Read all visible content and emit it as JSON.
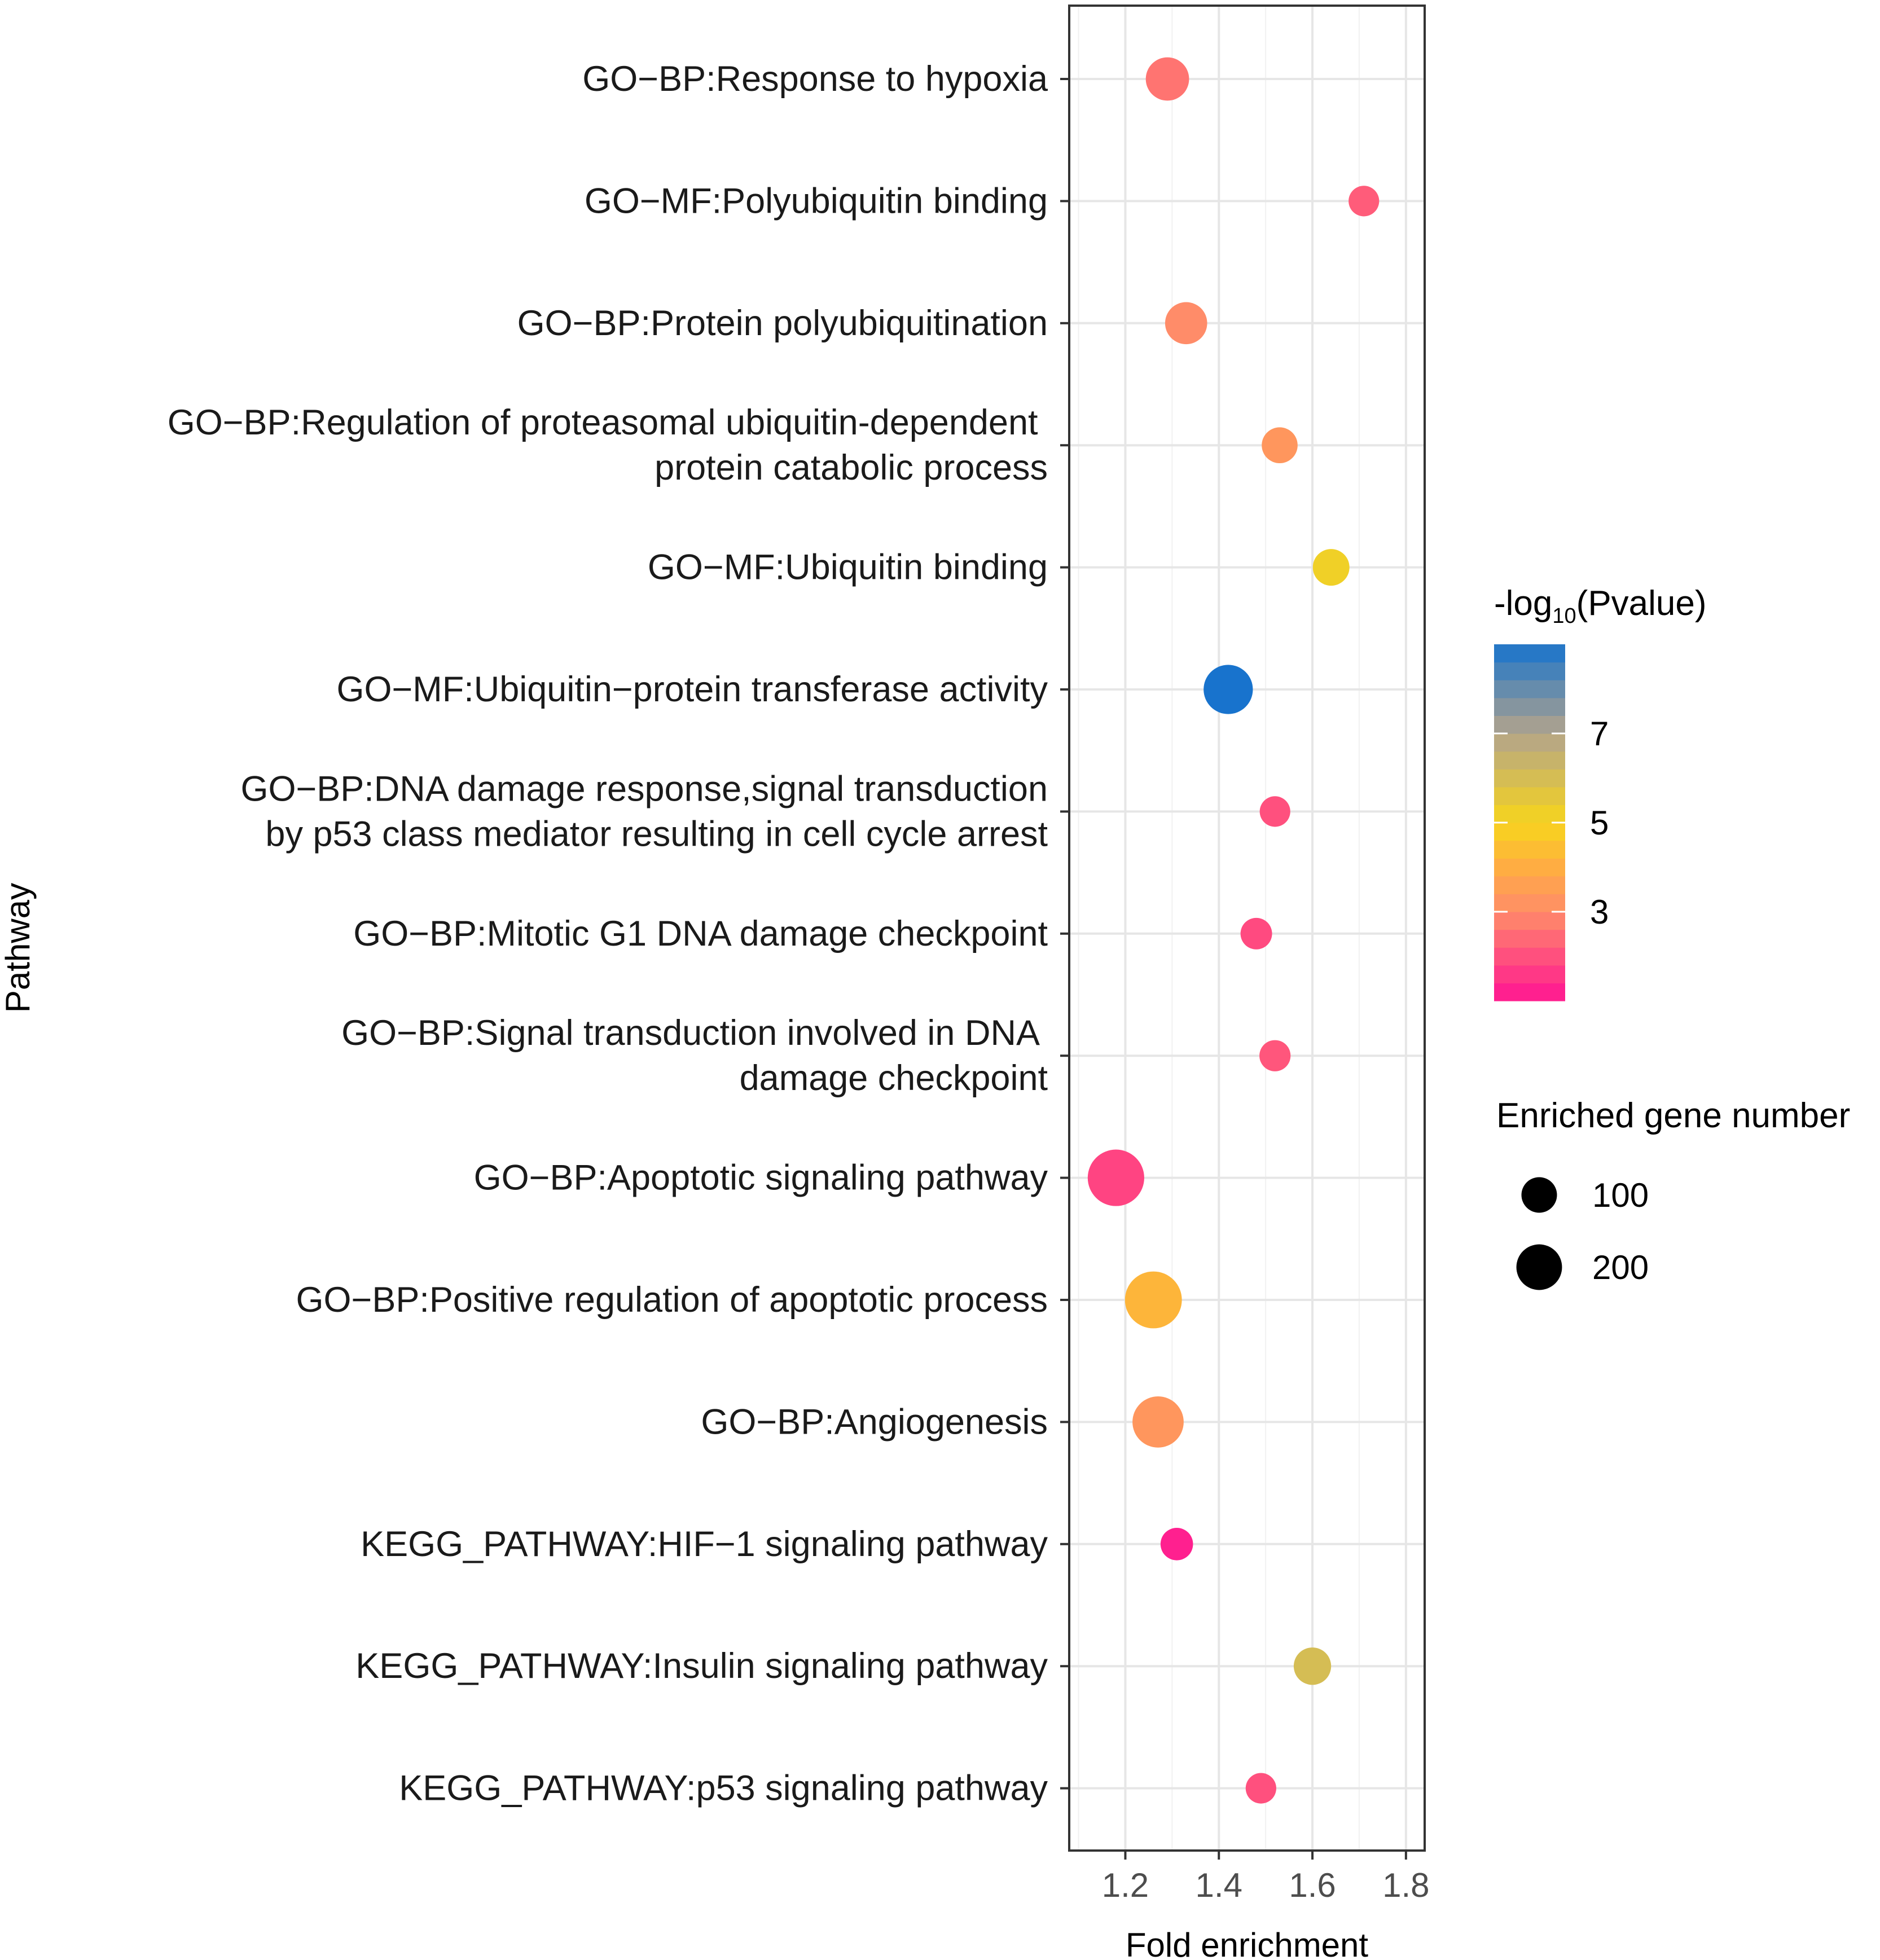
{
  "chart_data": {
    "type": "scatter",
    "title": "",
    "xlabel": "Fold enrichment",
    "ylabel": "Pathway",
    "xlim": [
      1.08,
      1.84
    ],
    "xticks": [
      "1.2",
      "1.4",
      "1.6",
      "1.8"
    ],
    "xtick_values": [
      1.2,
      1.4,
      1.6,
      1.8
    ],
    "grid": true,
    "points": [
      {
        "label_lines": [
          "GO−BP:Response to hypoxia"
        ],
        "fold_enrichment": 1.29,
        "neg_log10_p": 2.6,
        "gene_number": 130
      },
      {
        "label_lines": [
          "GO−MF:Polyubiquitin binding"
        ],
        "fold_enrichment": 1.71,
        "neg_log10_p": 2.2,
        "gene_number": 45
      },
      {
        "label_lines": [
          "GO−BP:Protein polyubiquitination"
        ],
        "fold_enrichment": 1.33,
        "neg_log10_p": 3.0,
        "gene_number": 120
      },
      {
        "label_lines": [
          "GO−BP:Regulation of proteasomal ubiquitin-dependent ",
          "protein catabolic process"
        ],
        "fold_enrichment": 1.53,
        "neg_log10_p": 3.3,
        "gene_number": 75
      },
      {
        "label_lines": [
          "GO−MF:Ubiquitin binding"
        ],
        "fold_enrichment": 1.64,
        "neg_log10_p": 5.2,
        "gene_number": 80
      },
      {
        "label_lines": [
          "GO−MF:Ubiquitin−protein transferase activity"
        ],
        "fold_enrichment": 1.42,
        "neg_log10_p": 9.0,
        "gene_number": 185
      },
      {
        "label_lines": [
          "GO−BP:DNA damage response,signal transduction",
          "by p53 class mediator resulting in cell cycle arrest"
        ],
        "fold_enrichment": 1.52,
        "neg_log10_p": 2.0,
        "gene_number": 45
      },
      {
        "label_lines": [
          "GO−BP:Mitotic G1 DNA damage checkpoint"
        ],
        "fold_enrichment": 1.48,
        "neg_log10_p": 1.9,
        "gene_number": 50
      },
      {
        "label_lines": [
          "GO−BP:Signal transduction involved in DNA ",
          "damage checkpoint"
        ],
        "fold_enrichment": 1.52,
        "neg_log10_p": 2.1,
        "gene_number": 48
      },
      {
        "label_lines": [
          "GO−BP:Apoptotic signaling pathway"
        ],
        "fold_enrichment": 1.18,
        "neg_log10_p": 1.8,
        "gene_number": 265
      },
      {
        "label_lines": [
          "GO−BP:Positive regulation of apoptotic process"
        ],
        "fold_enrichment": 1.26,
        "neg_log10_p": 4.2,
        "gene_number": 270
      },
      {
        "label_lines": [
          "GO−BP:Angiogenesis"
        ],
        "fold_enrichment": 1.27,
        "neg_log10_p": 3.3,
        "gene_number": 205
      },
      {
        "label_lines": [
          "KEGG_PATHWAY:HIF−1 signaling pathway"
        ],
        "fold_enrichment": 1.31,
        "neg_log10_p": 1.2,
        "gene_number": 55
      },
      {
        "label_lines": [
          "KEGG_PATHWAY:Insulin signaling pathway"
        ],
        "fold_enrichment": 1.6,
        "neg_log10_p": 6.0,
        "gene_number": 85
      },
      {
        "label_lines": [
          "KEGG_PATHWAY:p53 signaling pathway"
        ],
        "fold_enrichment": 1.49,
        "neg_log10_p": 2.0,
        "gene_number": 45
      }
    ],
    "color_legend": {
      "title_prefix": "-log",
      "title_subscript": "10",
      "title_suffix": "(Pvalue)",
      "range": [
        1.0,
        9.0
      ],
      "ticks": [
        3,
        5,
        7
      ],
      "tick_labels": [
        "3",
        "5",
        "7"
      ],
      "stops": [
        {
          "value": 1.0,
          "color": "#ff1493"
        },
        {
          "value": 3.0,
          "color": "#ff8c69"
        },
        {
          "value": 4.0,
          "color": "#ffad42"
        },
        {
          "value": 5.0,
          "color": "#f7d51c"
        },
        {
          "value": 7.0,
          "color": "#b3a48b"
        },
        {
          "value": 9.0,
          "color": "#1873cd"
        }
      ]
    },
    "size_legend": {
      "title": "Enriched gene number",
      "values": [
        100,
        200
      ],
      "labels": [
        "100",
        "200"
      ]
    }
  }
}
